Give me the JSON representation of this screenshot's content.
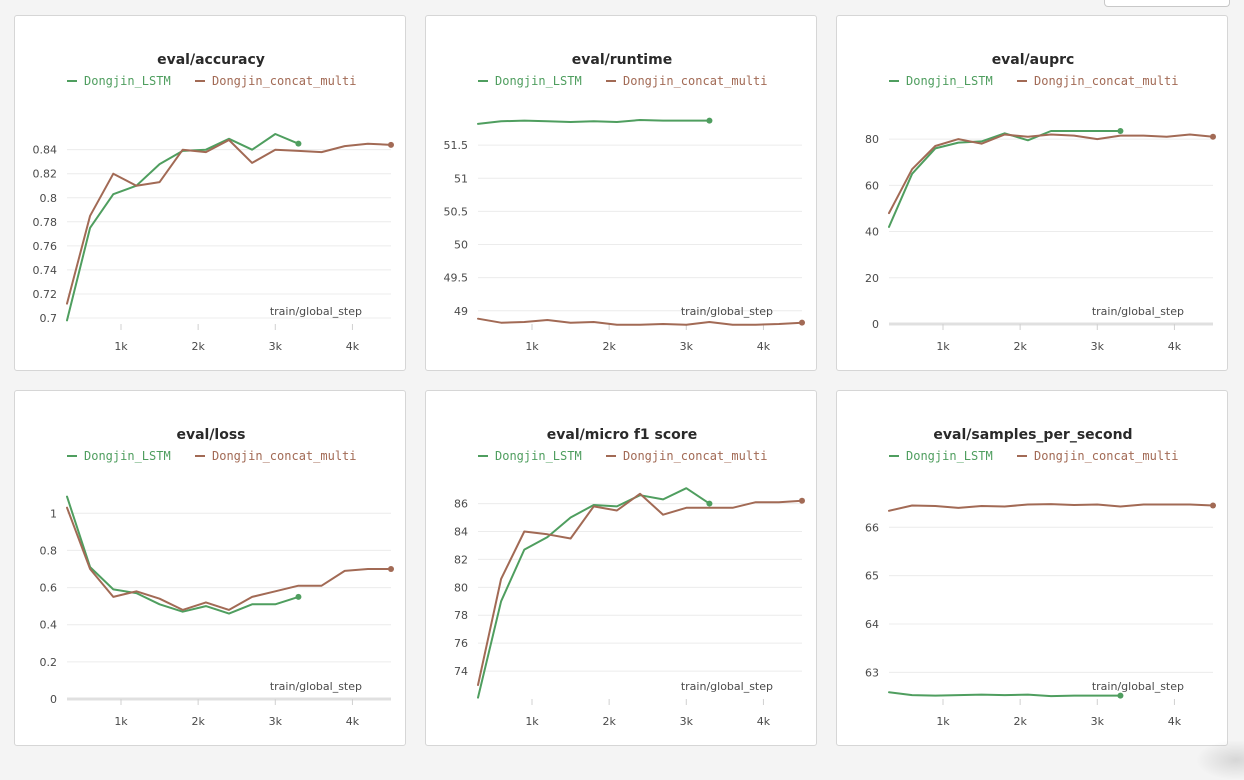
{
  "legend": {
    "series_a": "Dongjin_LSTM",
    "series_b": "Dongjin_concat_multi"
  },
  "colors": {
    "series_a": "#4f9e5f",
    "series_b": "#a26a55",
    "grid": "#ececec",
    "axis": "#e0e0e0"
  },
  "chart_data": [
    {
      "type": "line",
      "title": "eval/accuracy",
      "xlabel": "train/global_step",
      "ylabel": "",
      "xlim": [
        300,
        4500
      ],
      "ylim": [
        0.695,
        0.868
      ],
      "xticks": [
        1000,
        2000,
        3000,
        4000
      ],
      "xtick_labels": [
        "1k",
        "2k",
        "3k",
        "4k"
      ],
      "yticks": [
        0.7,
        0.72,
        0.74,
        0.76,
        0.78,
        0.8,
        0.82,
        0.84
      ],
      "ytick_labels": [
        "0.7",
        "0.72",
        "0.74",
        "0.76",
        "0.78",
        "0.8",
        "0.82",
        "0.84"
      ],
      "baseline": false,
      "series": [
        {
          "name": "Dongjin_LSTM",
          "x": [
            300,
            600,
            900,
            1200,
            1500,
            1800,
            2100,
            2400,
            2700,
            3000,
            3300
          ],
          "y": [
            0.698,
            0.775,
            0.803,
            0.81,
            0.828,
            0.839,
            0.84,
            0.849,
            0.84,
            0.853,
            0.845
          ]
        },
        {
          "name": "Dongjin_concat_multi",
          "x": [
            300,
            600,
            900,
            1200,
            1500,
            1800,
            2100,
            2400,
            2700,
            3000,
            3300,
            3600,
            3900,
            4200,
            4500
          ],
          "y": [
            0.712,
            0.785,
            0.82,
            0.81,
            0.813,
            0.84,
            0.838,
            0.848,
            0.829,
            0.84,
            0.839,
            0.838,
            0.843,
            0.845,
            0.844
          ]
        }
      ]
    },
    {
      "type": "line",
      "title": "eval/runtime",
      "xlabel": "train/global_step",
      "ylabel": "",
      "xlim": [
        300,
        4500
      ],
      "ylim": [
        48.8,
        51.94
      ],
      "xticks": [
        1000,
        2000,
        3000,
        4000
      ],
      "xtick_labels": [
        "1k",
        "2k",
        "3k",
        "4k"
      ],
      "yticks": [
        49,
        49.5,
        50,
        50.5,
        51,
        51.5
      ],
      "ytick_labels": [
        "49",
        "49.5",
        "50",
        "50.5",
        "51",
        "51.5"
      ],
      "baseline": false,
      "series": [
        {
          "name": "Dongjin_LSTM",
          "x": [
            300,
            600,
            900,
            1200,
            1500,
            1800,
            2100,
            2400,
            2700,
            3000,
            3300
          ],
          "y": [
            51.82,
            51.86,
            51.87,
            51.86,
            51.85,
            51.86,
            51.85,
            51.88,
            51.87,
            51.87,
            51.87
          ]
        },
        {
          "name": "Dongjin_concat_multi",
          "x": [
            300,
            600,
            900,
            1200,
            1500,
            1800,
            2100,
            2400,
            2700,
            3000,
            3300,
            3600,
            3900,
            4200,
            4500
          ],
          "y": [
            48.88,
            48.82,
            48.83,
            48.86,
            48.82,
            48.83,
            48.79,
            48.79,
            48.8,
            48.79,
            48.83,
            48.79,
            48.79,
            48.8,
            48.82
          ]
        }
      ]
    },
    {
      "type": "line",
      "title": "eval/auprc",
      "xlabel": "train/global_step",
      "ylabel": "",
      "xlim": [
        300,
        4500
      ],
      "ylim": [
        0,
        90
      ],
      "xticks": [
        1000,
        2000,
        3000,
        4000
      ],
      "xtick_labels": [
        "1k",
        "2k",
        "3k",
        "4k"
      ],
      "yticks": [
        0,
        20,
        40,
        60,
        80
      ],
      "ytick_labels": [
        "0",
        "20",
        "40",
        "60",
        "80"
      ],
      "baseline": true,
      "series": [
        {
          "name": "Dongjin_LSTM",
          "x": [
            300,
            600,
            900,
            1200,
            1500,
            1800,
            2100,
            2400,
            2700,
            3000,
            3300
          ],
          "y": [
            42,
            65,
            76,
            78.5,
            79,
            82.5,
            79.5,
            83.5,
            83.5,
            83.5,
            83.5
          ]
        },
        {
          "name": "Dongjin_concat_multi",
          "x": [
            300,
            600,
            900,
            1200,
            1500,
            1800,
            2100,
            2400,
            2700,
            3000,
            3300,
            3600,
            3900,
            4200,
            4500
          ],
          "y": [
            48,
            67,
            77,
            80,
            78,
            82,
            81,
            82,
            81.5,
            80,
            81.5,
            81.5,
            81,
            82,
            81
          ]
        }
      ]
    },
    {
      "type": "line",
      "title": "eval/loss",
      "xlabel": "train/global_step",
      "ylabel": "",
      "xlim": [
        300,
        4500
      ],
      "ylim": [
        0,
        1.12
      ],
      "xticks": [
        1000,
        2000,
        3000,
        4000
      ],
      "xtick_labels": [
        "1k",
        "2k",
        "3k",
        "4k"
      ],
      "yticks": [
        0,
        0.2,
        0.4,
        0.6,
        0.8,
        1
      ],
      "ytick_labels": [
        "0",
        "0.2",
        "0.4",
        "0.6",
        "0.8",
        "1"
      ],
      "baseline": true,
      "series": [
        {
          "name": "Dongjin_LSTM",
          "x": [
            300,
            600,
            900,
            1200,
            1500,
            1800,
            2100,
            2400,
            2700,
            3000,
            3300
          ],
          "y": [
            1.09,
            0.71,
            0.59,
            0.57,
            0.51,
            0.47,
            0.5,
            0.46,
            0.51,
            0.51,
            0.55
          ]
        },
        {
          "name": "Dongjin_concat_multi",
          "x": [
            300,
            600,
            900,
            1200,
            1500,
            1800,
            2100,
            2400,
            2700,
            3000,
            3300,
            3600,
            3900,
            4200,
            4500
          ],
          "y": [
            1.03,
            0.7,
            0.55,
            0.58,
            0.54,
            0.48,
            0.52,
            0.48,
            0.55,
            0.58,
            0.61,
            0.61,
            0.69,
            0.7,
            0.7
          ]
        }
      ]
    },
    {
      "type": "line",
      "title": "eval/micro f1 score",
      "xlabel": "train/global_step",
      "ylabel": "",
      "xlim": [
        300,
        4500
      ],
      "ylim": [
        72,
        86.9
      ],
      "xticks": [
        1000,
        2000,
        3000,
        4000
      ],
      "xtick_labels": [
        "1k",
        "2k",
        "3k",
        "4k"
      ],
      "yticks": [
        74,
        76,
        78,
        80,
        82,
        84,
        86
      ],
      "ytick_labels": [
        "74",
        "76",
        "78",
        "80",
        "82",
        "84",
        "86"
      ],
      "baseline": false,
      "series": [
        {
          "name": "Dongjin_LSTM",
          "x": [
            300,
            600,
            900,
            1200,
            1500,
            1800,
            2100,
            2400,
            2700,
            3000,
            3300
          ],
          "y": [
            72.1,
            79,
            82.7,
            83.6,
            85,
            85.9,
            85.8,
            86.6,
            86.3,
            87.1,
            86
          ]
        },
        {
          "name": "Dongjin_concat_multi",
          "x": [
            300,
            600,
            900,
            1200,
            1500,
            1800,
            2100,
            2400,
            2700,
            3000,
            3300,
            3600,
            3900,
            4200,
            4500
          ],
          "y": [
            73,
            80.6,
            84,
            83.8,
            83.5,
            85.8,
            85.5,
            86.7,
            85.2,
            85.7,
            85.7,
            85.7,
            86.1,
            86.1,
            86.2
          ]
        }
      ]
    },
    {
      "type": "line",
      "title": "eval/samples_per_second",
      "xlabel": "train/global_step",
      "ylabel": "",
      "xlim": [
        300,
        4500
      ],
      "ylim": [
        62.45,
        66.75
      ],
      "xticks": [
        1000,
        2000,
        3000,
        4000
      ],
      "xtick_labels": [
        "1k",
        "2k",
        "3k",
        "4k"
      ],
      "yticks": [
        63,
        64,
        65,
        66
      ],
      "ytick_labels": [
        "63",
        "64",
        "65",
        "66"
      ],
      "baseline": false,
      "series": [
        {
          "name": "Dongjin_LSTM",
          "x": [
            300,
            600,
            900,
            1200,
            1500,
            1800,
            2100,
            2400,
            2700,
            3000,
            3300
          ],
          "y": [
            62.59,
            62.53,
            62.52,
            62.53,
            62.54,
            62.53,
            62.54,
            62.51,
            62.52,
            62.52,
            62.52
          ]
        },
        {
          "name": "Dongjin_concat_multi",
          "x": [
            300,
            600,
            900,
            1200,
            1500,
            1800,
            2100,
            2400,
            2700,
            3000,
            3300,
            3600,
            3900,
            4200,
            4500
          ],
          "y": [
            66.34,
            66.45,
            66.44,
            66.4,
            66.44,
            66.43,
            66.47,
            66.48,
            66.46,
            66.47,
            66.43,
            66.47,
            66.47,
            66.47,
            66.45
          ]
        }
      ]
    }
  ]
}
